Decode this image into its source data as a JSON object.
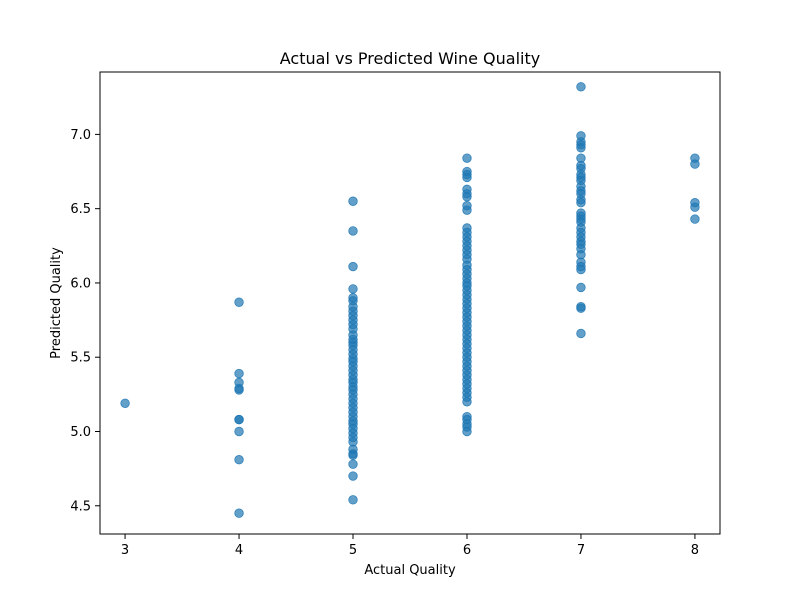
{
  "chart_data": {
    "type": "scatter",
    "title": "Actual vs Predicted Wine Quality",
    "xlabel": "Actual Quality",
    "ylabel": "Predicted Quality",
    "xlim": [
      2.78,
      8.22
    ],
    "ylim": [
      4.31,
      7.42
    ],
    "xticks": [
      3,
      4,
      5,
      6,
      7,
      8
    ],
    "yticks": [
      4.5,
      5.0,
      5.5,
      6.0,
      6.5,
      7.0
    ],
    "xtick_labels": [
      "3",
      "4",
      "5",
      "6",
      "7",
      "8"
    ],
    "ytick_labels": [
      "4.5",
      "5.0",
      "5.5",
      "6.0",
      "6.5",
      "7.0"
    ],
    "grid": false,
    "marker_color": "#1f77b4",
    "marker_alpha": 0.7,
    "points": [
      [
        3,
        5.19
      ],
      [
        4,
        5.87
      ],
      [
        4,
        5.39
      ],
      [
        4,
        5.33
      ],
      [
        4,
        5.29
      ],
      [
        4,
        5.28
      ],
      [
        4,
        5.08
      ],
      [
        4,
        5.08
      ],
      [
        4,
        5.0
      ],
      [
        4,
        4.81
      ],
      [
        4,
        4.45
      ],
      [
        5,
        6.55
      ],
      [
        5,
        6.35
      ],
      [
        5,
        6.11
      ],
      [
        5,
        5.96
      ],
      [
        5,
        5.9
      ],
      [
        5,
        5.88
      ],
      [
        5,
        5.84
      ],
      [
        5,
        5.81
      ],
      [
        5,
        5.78
      ],
      [
        5,
        5.75
      ],
      [
        5,
        5.72
      ],
      [
        5,
        5.69
      ],
      [
        5,
        5.65
      ],
      [
        5,
        5.62
      ],
      [
        5,
        5.6
      ],
      [
        5,
        5.58
      ],
      [
        5,
        5.55
      ],
      [
        5,
        5.52
      ],
      [
        5,
        5.49
      ],
      [
        5,
        5.47
      ],
      [
        5,
        5.44
      ],
      [
        5,
        5.41
      ],
      [
        5,
        5.38
      ],
      [
        5,
        5.35
      ],
      [
        5,
        5.33
      ],
      [
        5,
        5.3
      ],
      [
        5,
        5.28
      ],
      [
        5,
        5.25
      ],
      [
        5,
        5.22
      ],
      [
        5,
        5.19
      ],
      [
        5,
        5.16
      ],
      [
        5,
        5.13
      ],
      [
        5,
        5.1
      ],
      [
        5,
        5.07
      ],
      [
        5,
        5.05
      ],
      [
        5,
        5.02
      ],
      [
        5,
        4.99
      ],
      [
        5,
        4.96
      ],
      [
        5,
        4.93
      ],
      [
        5,
        4.88
      ],
      [
        5,
        4.85
      ],
      [
        5,
        4.84
      ],
      [
        5,
        4.78
      ],
      [
        5,
        4.7
      ],
      [
        5,
        4.54
      ],
      [
        6,
        6.84
      ],
      [
        6,
        6.75
      ],
      [
        6,
        6.73
      ],
      [
        6,
        6.71
      ],
      [
        6,
        6.63
      ],
      [
        6,
        6.6
      ],
      [
        6,
        6.58
      ],
      [
        6,
        6.52
      ],
      [
        6,
        6.49
      ],
      [
        6,
        6.37
      ],
      [
        6,
        6.34
      ],
      [
        6,
        6.31
      ],
      [
        6,
        6.28
      ],
      [
        6,
        6.25
      ],
      [
        6,
        6.22
      ],
      [
        6,
        6.19
      ],
      [
        6,
        6.16
      ],
      [
        6,
        6.12
      ],
      [
        6,
        6.09
      ],
      [
        6,
        6.06
      ],
      [
        6,
        6.03
      ],
      [
        6,
        6.0
      ],
      [
        6,
        5.98
      ],
      [
        6,
        5.95
      ],
      [
        6,
        5.92
      ],
      [
        6,
        5.89
      ],
      [
        6,
        5.86
      ],
      [
        6,
        5.83
      ],
      [
        6,
        5.8
      ],
      [
        6,
        5.77
      ],
      [
        6,
        5.74
      ],
      [
        6,
        5.71
      ],
      [
        6,
        5.68
      ],
      [
        6,
        5.65
      ],
      [
        6,
        5.62
      ],
      [
        6,
        5.59
      ],
      [
        6,
        5.56
      ],
      [
        6,
        5.53
      ],
      [
        6,
        5.5
      ],
      [
        6,
        5.47
      ],
      [
        6,
        5.44
      ],
      [
        6,
        5.41
      ],
      [
        6,
        5.38
      ],
      [
        6,
        5.35
      ],
      [
        6,
        5.32
      ],
      [
        6,
        5.29
      ],
      [
        6,
        5.26
      ],
      [
        6,
        5.23
      ],
      [
        6,
        5.2
      ],
      [
        6,
        5.1
      ],
      [
        6,
        5.08
      ],
      [
        6,
        5.05
      ],
      [
        6,
        5.03
      ],
      [
        6,
        5.0
      ],
      [
        7,
        7.32
      ],
      [
        7,
        6.99
      ],
      [
        7,
        6.95
      ],
      [
        7,
        6.93
      ],
      [
        7,
        6.91
      ],
      [
        7,
        6.84
      ],
      [
        7,
        6.79
      ],
      [
        7,
        6.77
      ],
      [
        7,
        6.73
      ],
      [
        7,
        6.71
      ],
      [
        7,
        6.69
      ],
      [
        7,
        6.65
      ],
      [
        7,
        6.62
      ],
      [
        7,
        6.6
      ],
      [
        7,
        6.56
      ],
      [
        7,
        6.54
      ],
      [
        7,
        6.47
      ],
      [
        7,
        6.45
      ],
      [
        7,
        6.43
      ],
      [
        7,
        6.41
      ],
      [
        7,
        6.37
      ],
      [
        7,
        6.34
      ],
      [
        7,
        6.31
      ],
      [
        7,
        6.28
      ],
      [
        7,
        6.26
      ],
      [
        7,
        6.23
      ],
      [
        7,
        6.19
      ],
      [
        7,
        6.14
      ],
      [
        7,
        6.11
      ],
      [
        7,
        6.09
      ],
      [
        7,
        5.97
      ],
      [
        7,
        5.84
      ],
      [
        7,
        5.83
      ],
      [
        7,
        5.66
      ],
      [
        8,
        6.84
      ],
      [
        8,
        6.8
      ],
      [
        8,
        6.54
      ],
      [
        8,
        6.51
      ],
      [
        8,
        6.43
      ]
    ]
  }
}
